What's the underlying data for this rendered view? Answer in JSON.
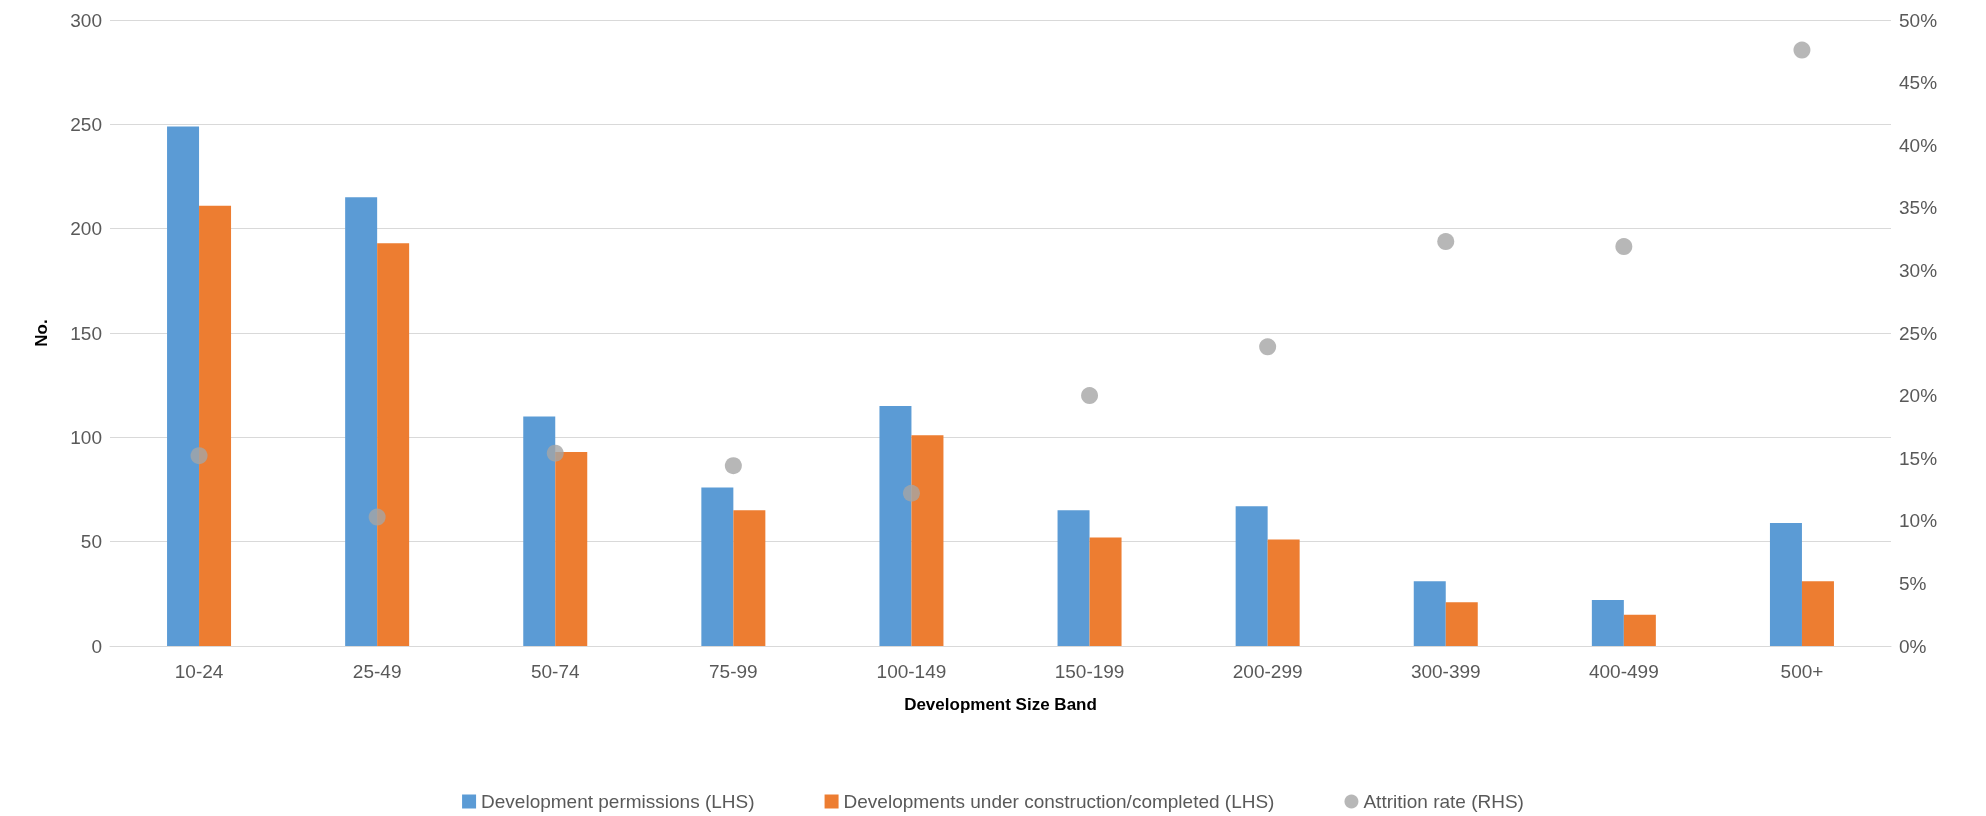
{
  "chart_data": {
    "type": "bar",
    "xlabel": "Development Size Band",
    "ylabel": "No.",
    "categories": [
      "10-24",
      "25-49",
      "50-74",
      "75-99",
      "100-149",
      "150-199",
      "200-299",
      "300-399",
      "400-499",
      "500+"
    ],
    "series": [
      {
        "name": "Development permissions (LHS)",
        "color": "#5b9bd5",
        "values": [
          249,
          215,
          110,
          76,
          115,
          65,
          67,
          31,
          22,
          59
        ]
      },
      {
        "name": "Developments under construction/completed (LHS)",
        "color": "#ed7d31",
        "values": [
          211,
          193,
          93,
          65,
          101,
          52,
          51,
          21,
          15,
          31
        ]
      },
      {
        "name": "Attrition rate (RHS)",
        "type": "scatter",
        "axis": "y2",
        "color": "#a5a5a5",
        "values": [
          15.2,
          10.3,
          15.4,
          14.4,
          12.2,
          20.0,
          23.9,
          32.3,
          31.9,
          47.6
        ]
      }
    ],
    "ylim": [
      0,
      300
    ],
    "yticks": [
      0,
      50,
      100,
      150,
      200,
      250,
      300
    ],
    "y2lim": [
      0,
      50
    ],
    "y2ticks": [
      {
        "value": 0,
        "label": "0%"
      },
      {
        "value": 5,
        "label": "5%"
      },
      {
        "value": 10,
        "label": "10%"
      },
      {
        "value": 15,
        "label": "15%"
      },
      {
        "value": 20,
        "label": "20%"
      },
      {
        "value": 25,
        "label": "25%"
      },
      {
        "value": 30,
        "label": "30%"
      },
      {
        "value": 35,
        "label": "35%"
      },
      {
        "value": 40,
        "label": "40%"
      },
      {
        "value": 45,
        "label": "45%"
      },
      {
        "value": 50,
        "label": "50%"
      }
    ],
    "grid": "y",
    "legend": "bottom",
    "marker": "circle"
  }
}
